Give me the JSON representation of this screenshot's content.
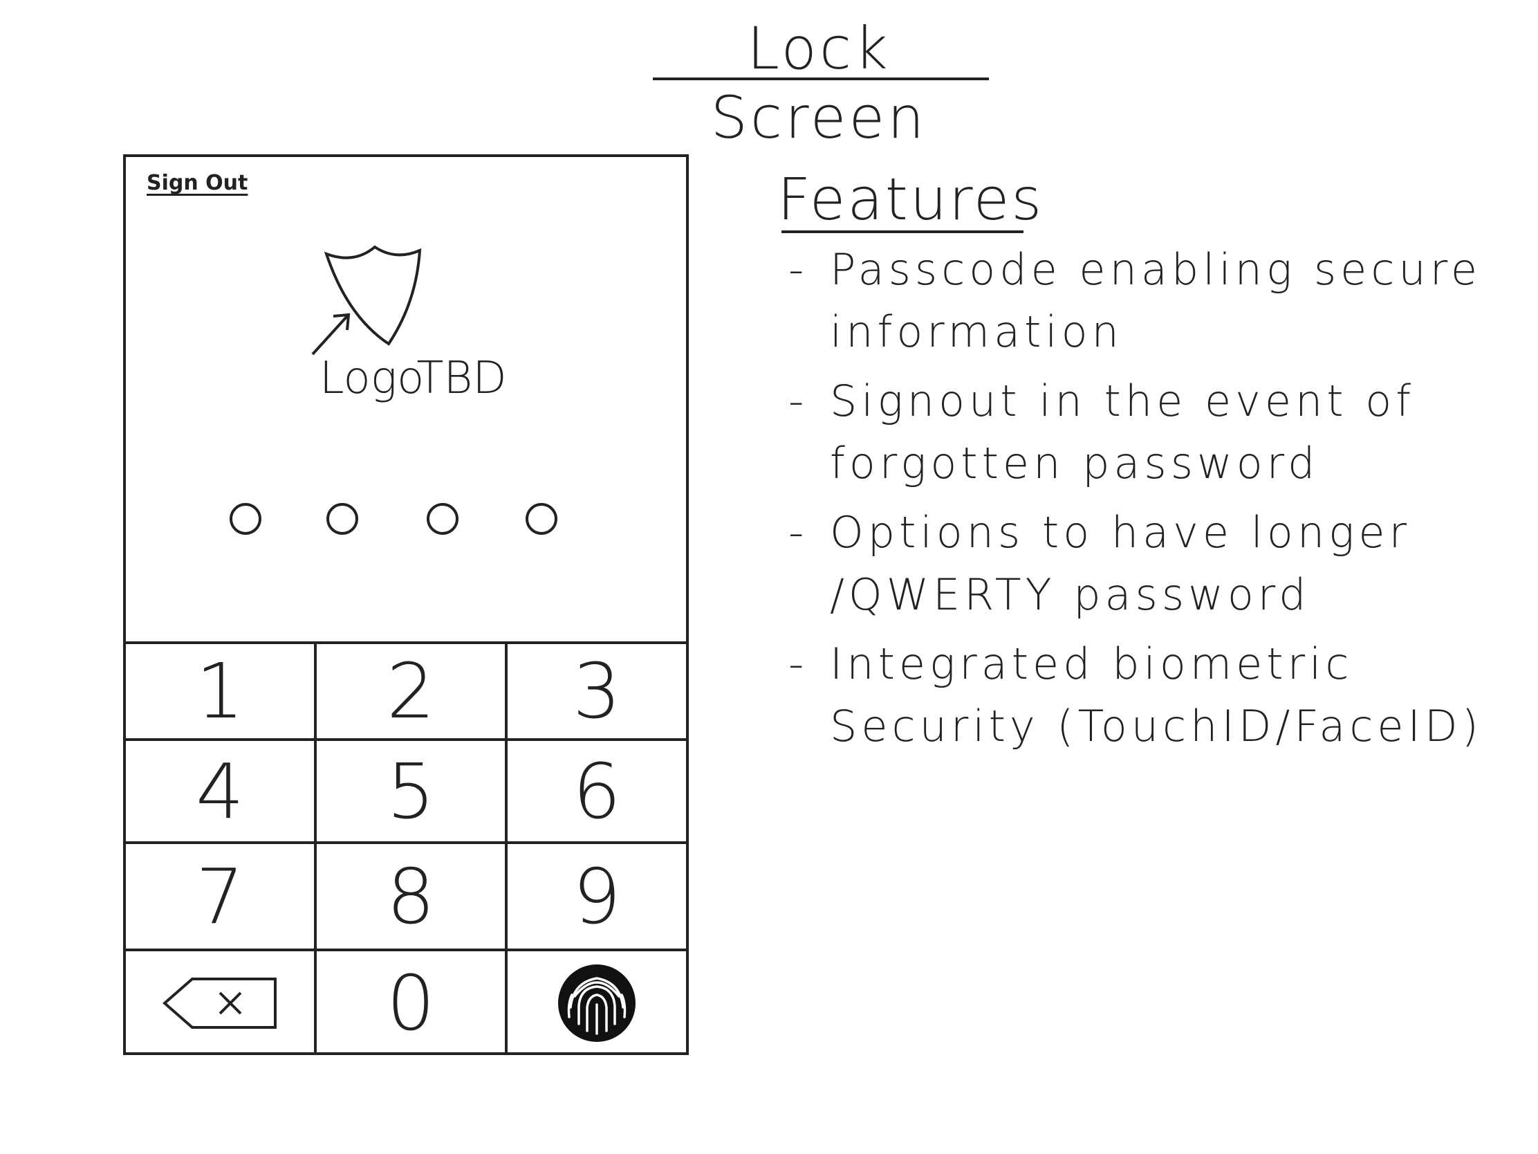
{
  "page_title": "Lock Screen",
  "phone": {
    "sign_out_label": "Sign Out",
    "logo_label": "LogoTBD",
    "passcode_length": 4,
    "keypad": {
      "keys": [
        "1",
        "2",
        "3",
        "4",
        "5",
        "6",
        "7",
        "8",
        "9",
        "0"
      ],
      "backspace_icon": "backspace-icon",
      "fingerprint_icon": "fingerprint-icon"
    }
  },
  "features": {
    "heading": "Features",
    "dash": "-",
    "items": [
      "Passcode enabling secure information",
      "Signout in the event of forgotten password",
      "Options to have longer /QWERTY password",
      "Integrated biometric Security (TouchID/FaceID)"
    ]
  }
}
